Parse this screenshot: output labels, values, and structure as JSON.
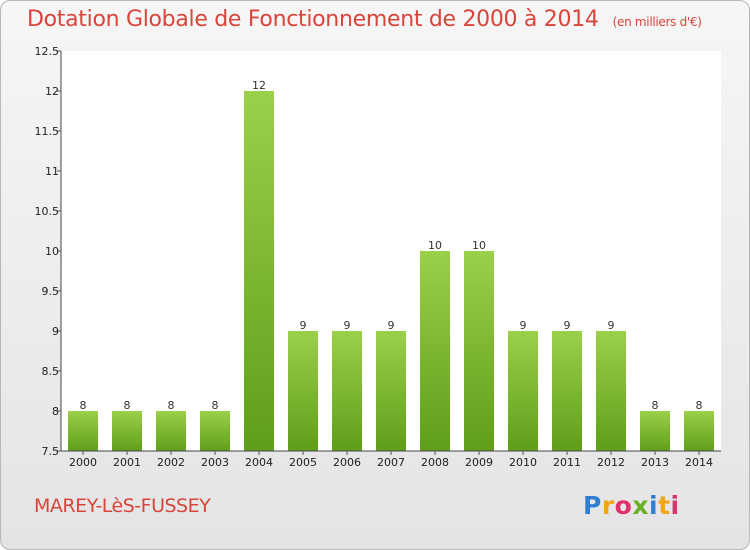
{
  "chart_data": {
    "type": "bar",
    "title": "Dotation Globale de Fonctionnement de 2000 à 2014",
    "subtitle": "(en milliers d'€)",
    "categories": [
      "2000",
      "2001",
      "2002",
      "2003",
      "2004",
      "2005",
      "2006",
      "2007",
      "2008",
      "2009",
      "2010",
      "2011",
      "2012",
      "2013",
      "2014"
    ],
    "values": [
      8,
      8,
      8,
      8,
      12,
      9,
      9,
      9,
      10,
      10,
      9,
      9,
      9,
      8,
      8
    ],
    "data_labels": [
      "8",
      "8",
      "8",
      "8",
      "12",
      "9",
      "9",
      "9",
      "10",
      "10",
      "9",
      "9",
      "9",
      "8",
      "8"
    ],
    "ylim": [
      7.5,
      12.5
    ],
    "yticks": [
      "7.5",
      "8",
      "8.5",
      "9",
      "9.5",
      "10",
      "10.5",
      "11",
      "11.5",
      "12",
      "12.5"
    ],
    "xlabel": "",
    "ylabel": "",
    "grid": false,
    "legend": "none",
    "bar_color_top": "#9bd04a",
    "bar_color_bottom": "#5f9e1a"
  },
  "commune": "MAREY-LèS-FUSSEY",
  "logo": {
    "text": "Proxiti",
    "colors": [
      "#2e7fd1",
      "#f2a51b",
      "#e0306e",
      "#6ab023",
      "#2e7fd1",
      "#f2a51b",
      "#e0306e"
    ]
  },
  "colors": {
    "accent": "#d9443b"
  }
}
